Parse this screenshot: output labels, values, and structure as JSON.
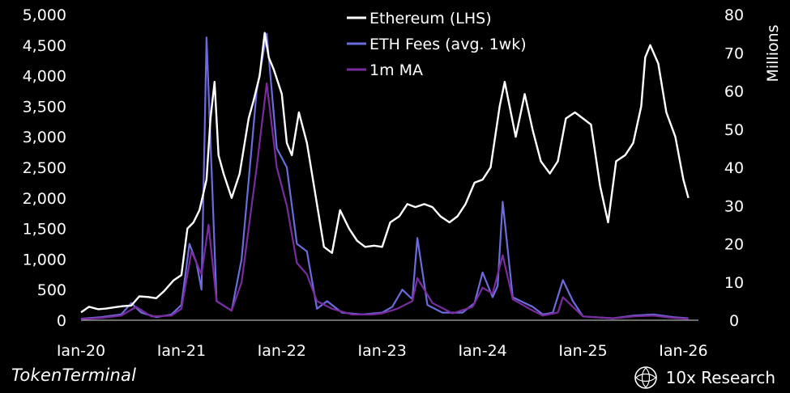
{
  "chart_data": {
    "type": "line",
    "title": "",
    "xlabel": "",
    "ylabel_left": "",
    "ylabel_right": "Millions",
    "y_left_lim": [
      0,
      5000
    ],
    "y_right_lim": [
      0,
      80
    ],
    "x_range": [
      2020.0,
      2026.15
    ],
    "y_left_ticks": [
      "0",
      "500",
      "1,000",
      "1,500",
      "2,000",
      "2,500",
      "3,000",
      "3,500",
      "4,000",
      "4,500",
      "5,000"
    ],
    "y_left_tick_values": [
      0,
      500,
      1000,
      1500,
      2000,
      2500,
      3000,
      3500,
      4000,
      4500,
      5000
    ],
    "y_right_ticks": [
      "0",
      "10",
      "20",
      "30",
      "40",
      "50",
      "60",
      "70",
      "80"
    ],
    "y_right_tick_values": [
      0,
      10,
      20,
      30,
      40,
      50,
      60,
      70,
      80
    ],
    "x_ticks": [
      "Jan-20",
      "Jan-21",
      "Jan-22",
      "Jan-23",
      "Jan-24",
      "Jan-25",
      "Jan-26"
    ],
    "x_tick_values": [
      2020.0,
      2021.0,
      2022.0,
      2023.0,
      2024.0,
      2025.0,
      2026.0
    ],
    "legend": [
      {
        "label": "Ethereum (LHS)",
        "color": "#ffffff"
      },
      {
        "label": "ETH Fees (avg. 1wk)",
        "color": "#6b6bdc"
      },
      {
        "label": "1m MA",
        "color": "#7a2b9e"
      }
    ],
    "series": [
      {
        "name": "Ethereum (LHS)",
        "axis": "left",
        "color": "#ffffff",
        "x": [
          2020.0,
          2020.08,
          2020.17,
          2020.25,
          2020.33,
          2020.42,
          2020.5,
          2020.58,
          2020.67,
          2020.75,
          2020.83,
          2020.92,
          2021.0,
          2021.06,
          2021.12,
          2021.18,
          2021.25,
          2021.29,
          2021.33,
          2021.37,
          2021.42,
          2021.5,
          2021.58,
          2021.67,
          2021.72,
          2021.78,
          2021.83,
          2021.87,
          2021.92,
          2022.0,
          2022.05,
          2022.1,
          2022.17,
          2022.25,
          2022.33,
          2022.42,
          2022.5,
          2022.58,
          2022.67,
          2022.75,
          2022.83,
          2022.92,
          2023.0,
          2023.08,
          2023.17,
          2023.25,
          2023.33,
          2023.42,
          2023.5,
          2023.58,
          2023.67,
          2023.75,
          2023.83,
          2023.92,
          2024.0,
          2024.08,
          2024.17,
          2024.22,
          2024.33,
          2024.42,
          2024.5,
          2024.58,
          2024.67,
          2024.75,
          2024.83,
          2024.92,
          2025.0,
          2025.08,
          2025.17,
          2025.25,
          2025.33,
          2025.42,
          2025.5,
          2025.58,
          2025.62,
          2025.67,
          2025.75,
          2025.83,
          2025.92,
          2026.0,
          2026.05
        ],
        "y": [
          130,
          220,
          180,
          190,
          210,
          230,
          240,
          390,
          380,
          360,
          480,
          650,
          740,
          1500,
          1600,
          1800,
          2300,
          3300,
          3900,
          2700,
          2400,
          2000,
          2400,
          3300,
          3600,
          4000,
          4700,
          4300,
          4100,
          3700,
          2900,
          2700,
          3400,
          2900,
          2100,
          1200,
          1100,
          1800,
          1500,
          1300,
          1200,
          1220,
          1200,
          1600,
          1700,
          1900,
          1850,
          1900,
          1850,
          1700,
          1600,
          1700,
          1900,
          2250,
          2300,
          2500,
          3500,
          3900,
          3000,
          3700,
          3100,
          2600,
          2400,
          2600,
          3300,
          3400,
          3300,
          3200,
          2200,
          1600,
          2600,
          2700,
          2900,
          3500,
          4300,
          4500,
          4200,
          3400,
          3000,
          2300,
          2000
        ]
      },
      {
        "name": "ETH Fees (avg. 1wk)",
        "axis": "right",
        "color": "#6b6bdc",
        "x": [
          2020.0,
          2020.2,
          2020.4,
          2020.5,
          2020.6,
          2020.75,
          2020.9,
          2021.0,
          2021.08,
          2021.15,
          2021.2,
          2021.25,
          2021.35,
          2021.5,
          2021.6,
          2021.75,
          2021.85,
          2021.95,
          2022.05,
          2022.15,
          2022.25,
          2022.35,
          2022.45,
          2022.6,
          2022.8,
          2023.0,
          2023.1,
          2023.2,
          2023.3,
          2023.35,
          2023.45,
          2023.6,
          2023.8,
          2023.92,
          2024.0,
          2024.1,
          2024.15,
          2024.2,
          2024.3,
          2024.5,
          2024.6,
          2024.7,
          2024.8,
          2024.9,
          2025.0,
          2025.3,
          2025.5,
          2025.7,
          2025.9,
          2026.05
        ],
        "y": [
          0.4,
          0.8,
          1.5,
          4.5,
          2.0,
          0.8,
          1.5,
          4.0,
          20.0,
          15.0,
          8.0,
          74.0,
          5.0,
          2.5,
          16.0,
          60.0,
          75.0,
          45.0,
          40.0,
          20.0,
          18.0,
          3.0,
          5.0,
          2.0,
          1.5,
          2.0,
          3.5,
          8.0,
          5.5,
          21.5,
          4.0,
          2.0,
          2.0,
          4.5,
          12.5,
          6.0,
          9.0,
          31.0,
          6.0,
          3.5,
          1.5,
          2.0,
          10.5,
          5.0,
          1.0,
          0.5,
          1.2,
          1.5,
          0.8,
          0.5
        ]
      },
      {
        "name": "1m MA",
        "axis": "right",
        "color": "#7a2b9e",
        "x": [
          2020.0,
          2020.2,
          2020.4,
          2020.55,
          2020.7,
          2020.9,
          2021.0,
          2021.1,
          2021.2,
          2021.27,
          2021.35,
          2021.5,
          2021.6,
          2021.75,
          2021.85,
          2021.95,
          2022.05,
          2022.15,
          2022.25,
          2022.35,
          2022.5,
          2022.7,
          2022.9,
          2023.0,
          2023.15,
          2023.3,
          2023.35,
          2023.5,
          2023.7,
          2023.9,
          2024.0,
          2024.1,
          2024.2,
          2024.3,
          2024.5,
          2024.6,
          2024.75,
          2024.8,
          2024.9,
          2025.0,
          2025.3,
          2025.5,
          2025.7,
          2025.9,
          2026.05
        ],
        "y": [
          0.3,
          0.6,
          1.2,
          3.5,
          1.0,
          1.2,
          3.0,
          18.0,
          12.0,
          25.0,
          5.0,
          2.5,
          10.0,
          40.0,
          62.0,
          40.0,
          30.0,
          15.0,
          12.0,
          5.0,
          3.0,
          1.5,
          1.5,
          1.8,
          3.0,
          5.0,
          11.0,
          4.5,
          1.8,
          3.5,
          8.5,
          7.0,
          17.0,
          5.5,
          2.5,
          1.2,
          2.0,
          6.0,
          3.5,
          1.0,
          0.5,
          1.0,
          1.2,
          0.6,
          0.4
        ]
      }
    ]
  },
  "footer": {
    "source": "TokenTerminal",
    "brand": "10x Research"
  }
}
